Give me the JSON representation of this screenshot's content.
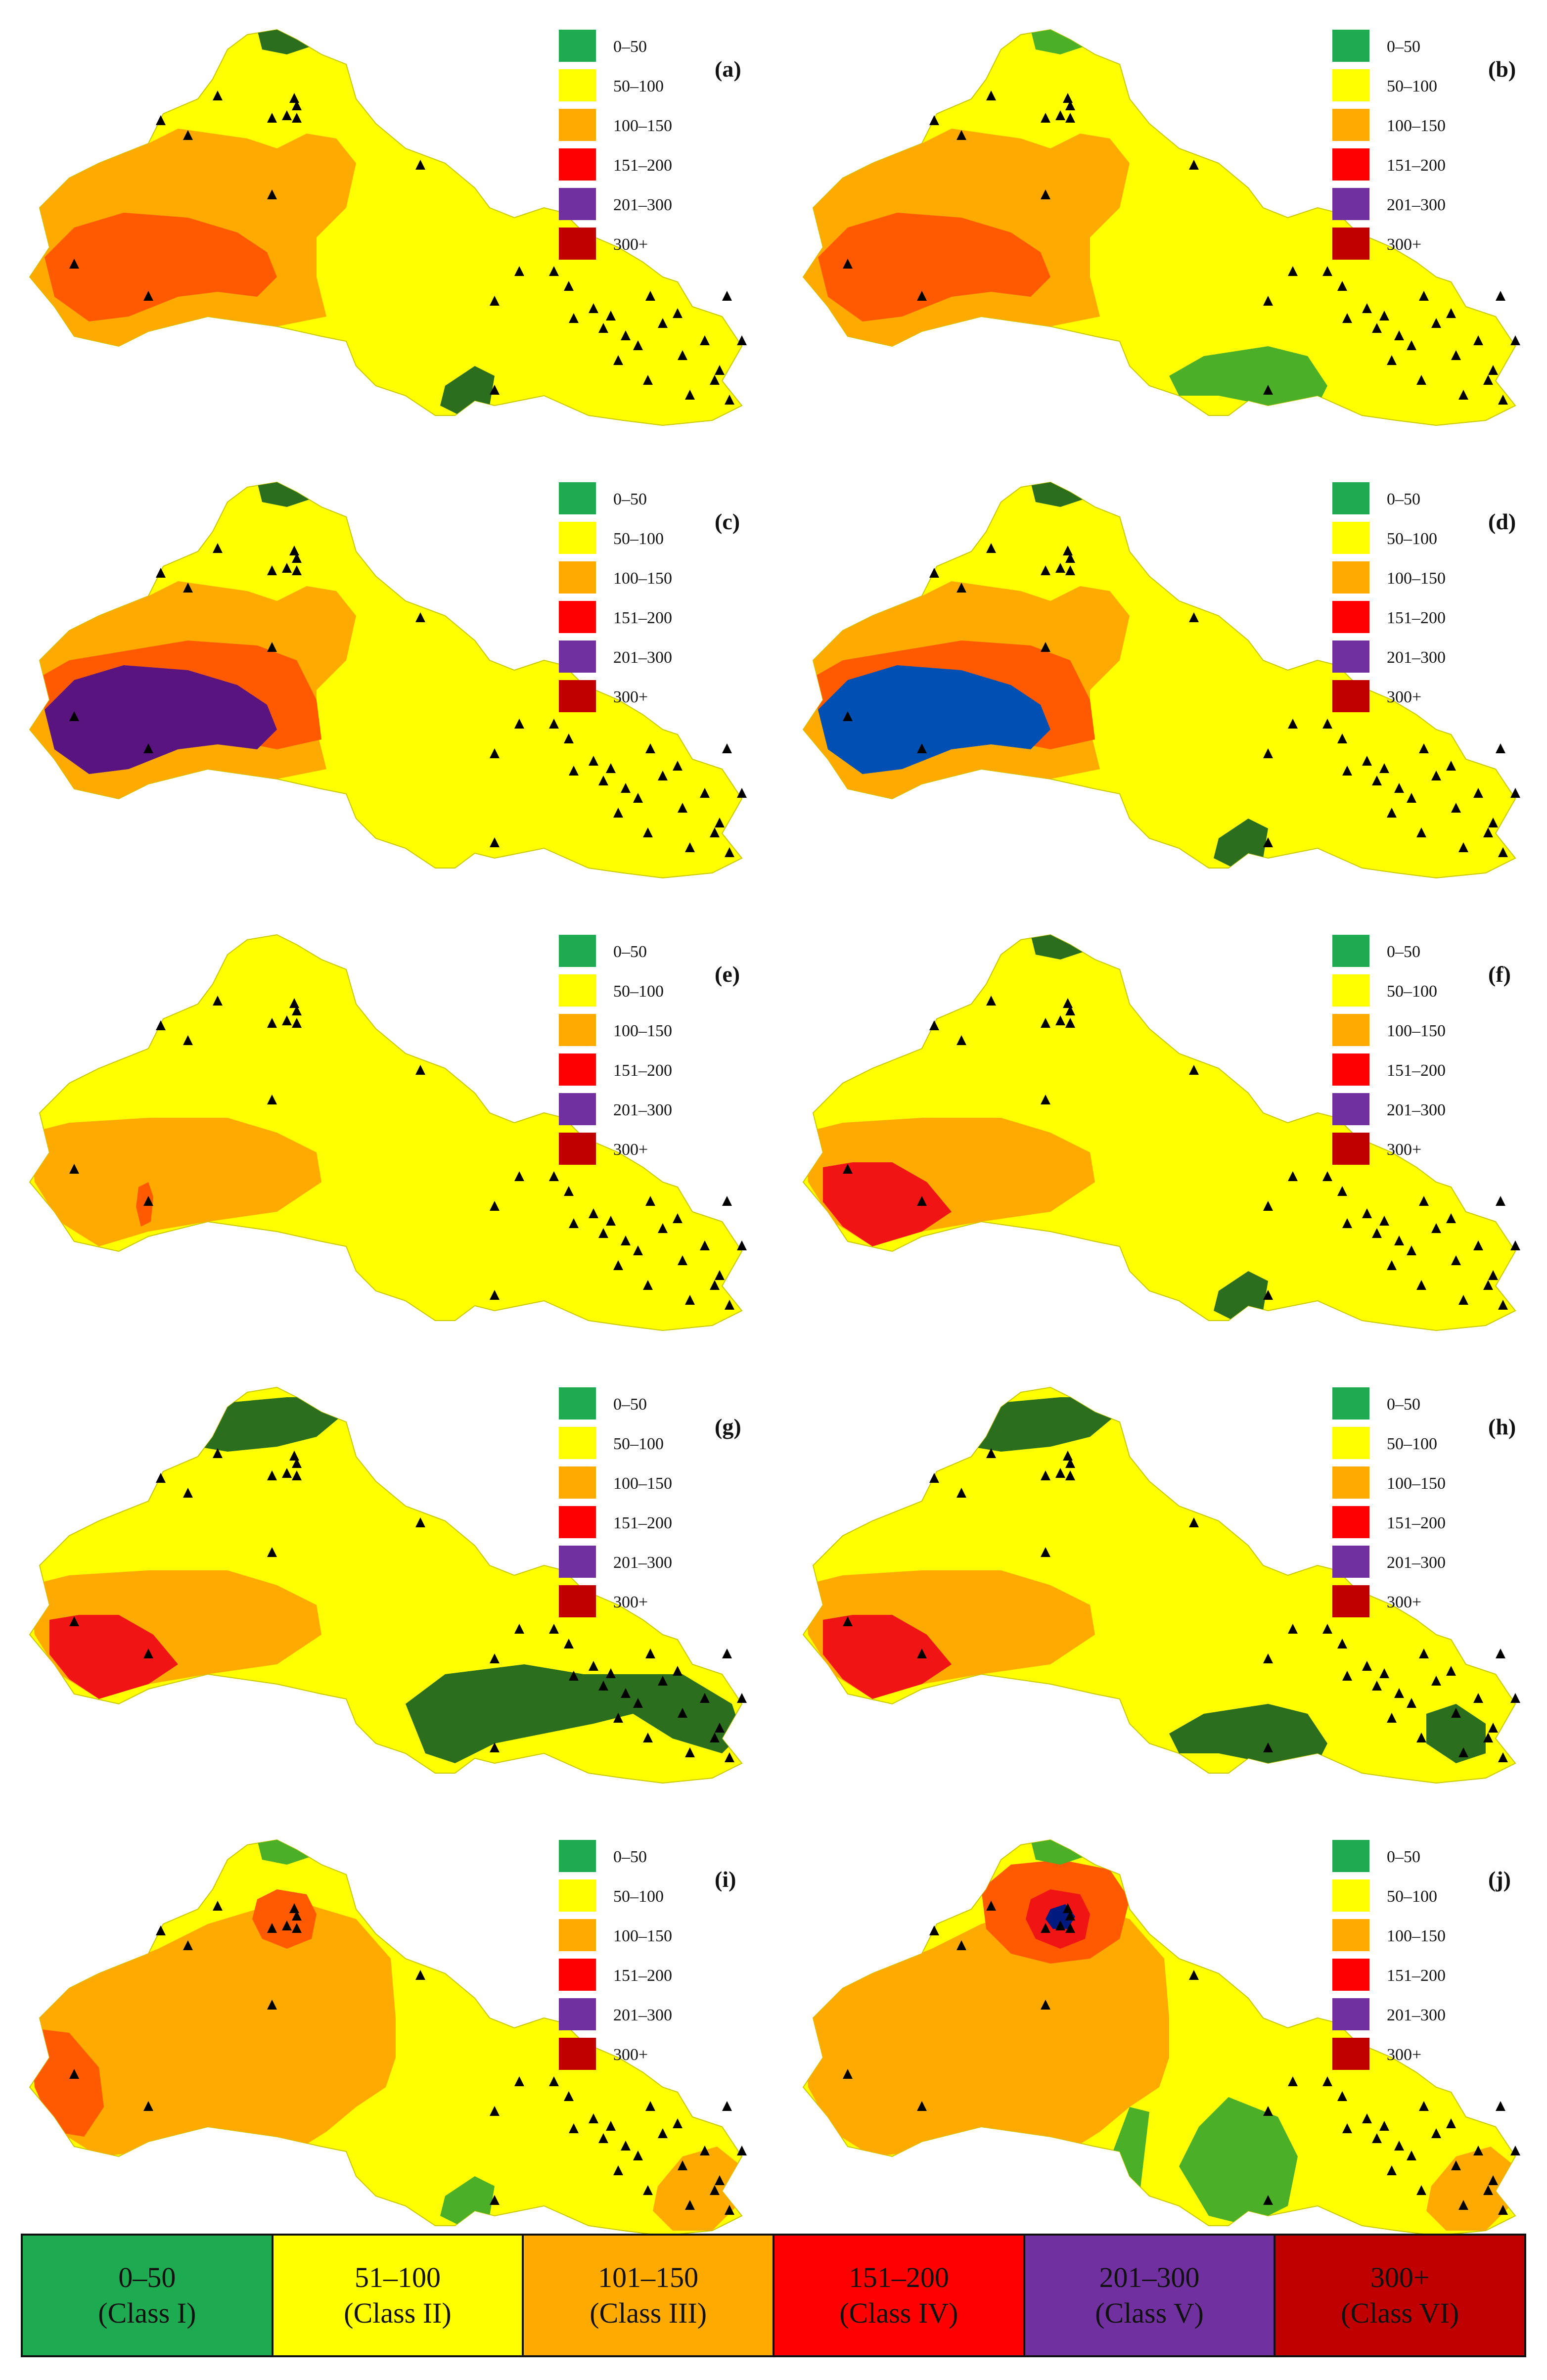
{
  "legend_classes": [
    {
      "range": "0–50",
      "class": "(Class I)",
      "color": "#1eaa50"
    },
    {
      "range": "51–100",
      "class": "(Class II)",
      "color": "#ffff00"
    },
    {
      "range": "101–150",
      "class": "(Class III)",
      "color": "#ffaa00"
    },
    {
      "range": "151–200",
      "class": "(Class IV)",
      "color": "#ff0000"
    },
    {
      "range": "201–300",
      "class": "(Class V)",
      "color": "#7030a0"
    },
    {
      "range": "300+",
      "class": "(Class VI)",
      "color": "#c00000"
    }
  ],
  "panel_legend": [
    {
      "label": "0–50",
      "color": "#1eaa50"
    },
    {
      "label": "50–100",
      "color": "#ffff00"
    },
    {
      "label": "100–150",
      "color": "#ffaa00"
    },
    {
      "label": "151–200",
      "color": "#ff0000"
    },
    {
      "label": "201–300",
      "color": "#7030a0"
    },
    {
      "label": "300+",
      "color": "#c00000"
    }
  ],
  "zone_colors": {
    "dark_green": "#2a6e1e",
    "green": "#4caf28",
    "deep_orange": "#ff5a00",
    "purple_deep": "#5a1480",
    "blue": "#0050b4",
    "navy": "#001a80",
    "red": "#f01414"
  },
  "panels": [
    {
      "label": "(a)",
      "zones": [
        {
          "shape": "west_large",
          "color": "#ffaa00"
        },
        {
          "shape": "west_core",
          "color": "#ff5a00"
        },
        {
          "shape": "north_tip",
          "color": "#2a6e1e"
        },
        {
          "shape": "south_small",
          "color": "#2a6e1e"
        }
      ]
    },
    {
      "label": "(b)",
      "zones": [
        {
          "shape": "west_large",
          "color": "#ffaa00"
        },
        {
          "shape": "west_core",
          "color": "#ff5a00"
        },
        {
          "shape": "north_tip",
          "color": "#4caf28"
        },
        {
          "shape": "south_wide",
          "color": "#4caf28"
        }
      ]
    },
    {
      "label": "(c)",
      "zones": [
        {
          "shape": "west_large",
          "color": "#ffaa00"
        },
        {
          "shape": "west_mid",
          "color": "#ff5a00"
        },
        {
          "shape": "west_core",
          "color": "#5a1480"
        },
        {
          "shape": "north_tip",
          "color": "#2a6e1e"
        }
      ]
    },
    {
      "label": "(d)",
      "zones": [
        {
          "shape": "west_large",
          "color": "#ffaa00"
        },
        {
          "shape": "west_mid",
          "color": "#ff5a00"
        },
        {
          "shape": "west_core",
          "color": "#0050b4"
        },
        {
          "shape": "north_tip",
          "color": "#2a6e1e"
        },
        {
          "shape": "south_small",
          "color": "#2a6e1e"
        }
      ]
    },
    {
      "label": "(e)",
      "zones": [
        {
          "shape": "west_small",
          "color": "#ffaa00"
        },
        {
          "shape": "west_dot",
          "color": "#ff5a00"
        }
      ]
    },
    {
      "label": "(f)",
      "zones": [
        {
          "shape": "west_small",
          "color": "#ffaa00"
        },
        {
          "shape": "west_core_small",
          "color": "#f01414"
        },
        {
          "shape": "north_tip",
          "color": "#2a6e1e"
        },
        {
          "shape": "south_small",
          "color": "#2a6e1e"
        }
      ]
    },
    {
      "label": "(g)",
      "zones": [
        {
          "shape": "west_small",
          "color": "#ffaa00"
        },
        {
          "shape": "west_core_small",
          "color": "#f01414"
        },
        {
          "shape": "north_wide",
          "color": "#2a6e1e"
        },
        {
          "shape": "southeast_band",
          "color": "#2a6e1e"
        }
      ]
    },
    {
      "label": "(h)",
      "zones": [
        {
          "shape": "west_small",
          "color": "#ffaa00"
        },
        {
          "shape": "west_core_small",
          "color": "#f01414"
        },
        {
          "shape": "north_wide",
          "color": "#2a6e1e"
        },
        {
          "shape": "south_wide",
          "color": "#2a6e1e"
        },
        {
          "shape": "east_small",
          "color": "#2a6e1e"
        }
      ]
    },
    {
      "label": "(i)",
      "zones": [
        {
          "shape": "west_huge",
          "color": "#ffaa00"
        },
        {
          "shape": "center_ring",
          "color": "#ff5a00"
        },
        {
          "shape": "west_edge",
          "color": "#ff5a00"
        },
        {
          "shape": "north_tip",
          "color": "#4caf28"
        },
        {
          "shape": "south_small",
          "color": "#4caf28"
        },
        {
          "shape": "east_blob",
          "color": "#ffaa00"
        }
      ]
    },
    {
      "label": "(j)",
      "zones": [
        {
          "shape": "west_huge",
          "color": "#ffaa00"
        },
        {
          "shape": "center_ring_big",
          "color": "#ff5a00"
        },
        {
          "shape": "center_ring",
          "color": "#f01414"
        },
        {
          "shape": "center_dot",
          "color": "#001a80"
        },
        {
          "shape": "north_tip",
          "color": "#4caf28"
        },
        {
          "shape": "south_stripes",
          "color": "#4caf28"
        },
        {
          "shape": "east_blob",
          "color": "#ffaa00"
        }
      ]
    }
  ]
}
